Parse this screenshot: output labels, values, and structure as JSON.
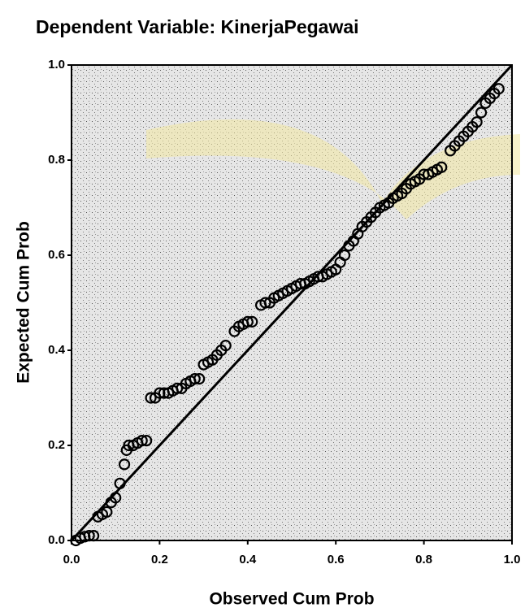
{
  "chart_data": {
    "type": "scatter",
    "title": "Dependent Variable: KinerjaPegawai",
    "x_label": "Observed Cum Prob",
    "y_label": "Expected Cum Prob",
    "xlim": [
      0,
      1
    ],
    "ylim": [
      0,
      1
    ],
    "xticks": [
      {
        "value": 0,
        "label": "0.0"
      },
      0.2,
      0.4,
      0.6,
      0.8,
      {
        "value": 1,
        "label": "1.0"
      }
    ],
    "yticks": [
      {
        "value": 0,
        "label": "0.0"
      },
      0.2,
      0.4,
      0.6,
      0.8,
      {
        "value": 1,
        "label": "1.0"
      }
    ],
    "color": "#000000",
    "x": [
      0.01,
      0.02,
      0.03,
      0.04,
      0.05,
      0.06,
      0.07,
      0.08,
      0.09,
      0.1,
      0.11,
      0.12,
      0.125,
      0.13,
      0.14,
      0.15,
      0.16,
      0.17,
      0.18,
      0.19,
      0.2,
      0.21,
      0.22,
      0.23,
      0.24,
      0.25,
      0.26,
      0.27,
      0.28,
      0.29,
      0.3,
      0.31,
      0.32,
      0.33,
      0.34,
      0.35,
      0.37,
      0.38,
      0.39,
      0.4,
      0.41,
      0.43,
      0.44,
      0.45,
      0.46,
      0.47,
      0.48,
      0.49,
      0.5,
      0.51,
      0.52,
      0.53,
      0.54,
      0.55,
      0.56,
      0.57,
      0.58,
      0.59,
      0.6,
      0.61,
      0.62,
      0.63,
      0.64,
      0.65,
      0.66,
      0.67,
      0.68,
      0.69,
      0.7,
      0.71,
      0.72,
      0.73,
      0.74,
      0.75,
      0.76,
      0.77,
      0.78,
      0.79,
      0.8,
      0.81,
      0.82,
      0.83,
      0.84,
      0.86,
      0.87,
      0.88,
      0.89,
      0.9,
      0.91,
      0.92,
      0.93,
      0.94,
      0.95,
      0.96,
      0.97
    ],
    "values": [
      0.0,
      0.005,
      0.008,
      0.01,
      0.01,
      0.05,
      0.055,
      0.06,
      0.08,
      0.09,
      0.12,
      0.16,
      0.19,
      0.2,
      0.2,
      0.205,
      0.21,
      0.21,
      0.3,
      0.3,
      0.31,
      0.31,
      0.31,
      0.315,
      0.32,
      0.32,
      0.33,
      0.335,
      0.34,
      0.34,
      0.37,
      0.375,
      0.38,
      0.39,
      0.4,
      0.41,
      0.44,
      0.45,
      0.455,
      0.46,
      0.46,
      0.495,
      0.5,
      0.5,
      0.51,
      0.515,
      0.52,
      0.525,
      0.53,
      0.535,
      0.54,
      0.54,
      0.545,
      0.55,
      0.555,
      0.555,
      0.56,
      0.565,
      0.57,
      0.585,
      0.6,
      0.62,
      0.63,
      0.645,
      0.66,
      0.67,
      0.68,
      0.69,
      0.7,
      0.705,
      0.71,
      0.72,
      0.725,
      0.73,
      0.74,
      0.75,
      0.755,
      0.76,
      0.77,
      0.77,
      0.775,
      0.78,
      0.785,
      0.82,
      0.83,
      0.84,
      0.85,
      0.86,
      0.87,
      0.88,
      0.9,
      0.92,
      0.93,
      0.94,
      0.95
    ]
  }
}
